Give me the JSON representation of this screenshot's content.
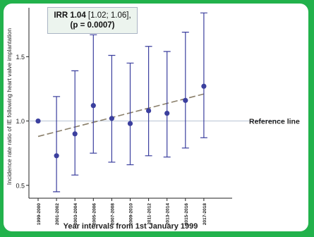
{
  "annotation": {
    "irr_label": "IRR 1.04",
    "irr_ci": " [1.02; 1.06],",
    "p_value": "(p = 0.0007)"
  },
  "reference_line_label": "Reference line",
  "colors": {
    "frame": "#22b24c",
    "points": "#3b3f9e",
    "trend": "#8a7f6a",
    "reference": "#b8c4d4"
  },
  "chart_data": {
    "type": "scatter",
    "xlabel": "Year intervals from 1st January 1999",
    "ylabel": "Incidence rate ratio of IE following heart valve implantation",
    "ylim": [
      0.4,
      1.88
    ],
    "yticks": [
      0.5,
      1.0,
      1.5
    ],
    "ytick_labels": [
      "0.5",
      "1.0",
      "1.5"
    ],
    "reference_value": 1.0,
    "categories": [
      "1999-2000",
      "2001-2002",
      "2003-2004",
      "2005-2006",
      "2007-2008",
      "2009-2010",
      "2011-2012",
      "2013-2014",
      "2015-2016",
      "2017-2018"
    ],
    "series": [
      {
        "values": [
          1.0,
          0.73,
          0.9,
          1.12,
          1.02,
          0.98,
          1.08,
          1.06,
          1.16,
          1.27
        ],
        "ci_lower": [
          null,
          0.45,
          0.58,
          0.75,
          0.68,
          0.66,
          0.73,
          0.72,
          0.79,
          0.87
        ],
        "ci_upper": [
          null,
          1.19,
          1.39,
          1.67,
          1.51,
          1.45,
          1.58,
          1.54,
          1.69,
          1.84
        ]
      }
    ],
    "trend_line": {
      "start": 0.88,
      "end": 1.21
    }
  }
}
